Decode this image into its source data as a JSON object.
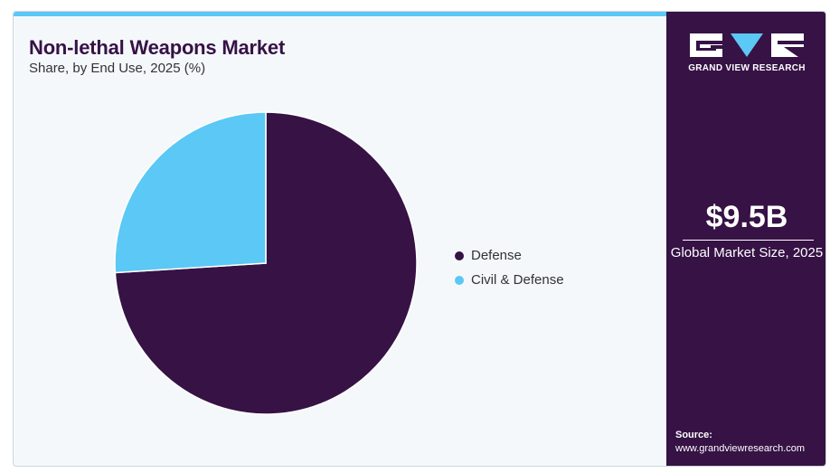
{
  "header": {
    "title": "Non-lethal Weapons Market",
    "subtitle": "Share, by End Use, 2025 (%)"
  },
  "colors": {
    "defense": "#361245",
    "civil_defense": "#5bc8f5",
    "sidebar": "#361245",
    "accent_bar": "#5bc8f5"
  },
  "chart_data": {
    "type": "pie",
    "categories": [
      "Defense",
      "Civil & Defense"
    ],
    "values": [
      74,
      26
    ],
    "colors": [
      "#361245",
      "#5bc8f5"
    ],
    "title": "Non-lethal Weapons Market",
    "subtitle": "Share, by End Use, 2025 (%)",
    "legend_position": "right"
  },
  "legend": {
    "items": [
      {
        "label": "Defense",
        "color": "#361245"
      },
      {
        "label": "Civil & Defense",
        "color": "#5bc8f5"
      }
    ]
  },
  "sidebar": {
    "brand": "GRAND VIEW RESEARCH",
    "logo_icon": "gvr-logo-icon",
    "market_value": "$9.5B",
    "market_label": "Global Market Size, 2025",
    "source_label": "Source:",
    "source_url": "www.grandviewresearch.com"
  }
}
